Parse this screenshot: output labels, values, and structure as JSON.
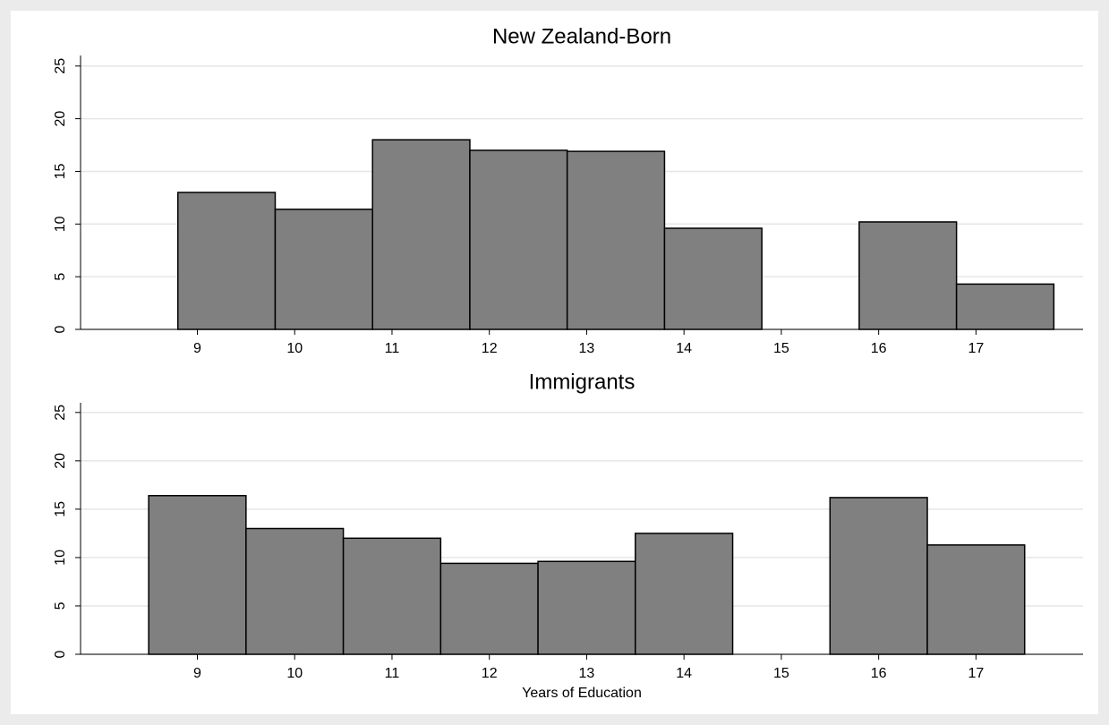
{
  "chart_data": [
    {
      "type": "histogram",
      "title": "New Zealand-Born",
      "bins": [
        8.8,
        9.8,
        10.8,
        11.8,
        12.8,
        13.8,
        14.8,
        15.8,
        16.8,
        17.8
      ],
      "values": [
        13,
        11.4,
        18,
        17,
        16.9,
        9.6,
        0,
        10.2,
        4.3
      ],
      "color": "#808080",
      "xlim": [
        7.8,
        18.1
      ],
      "xticks": [
        9,
        10,
        11,
        12,
        13,
        14,
        15,
        16,
        17
      ],
      "ylim": [
        0,
        26
      ],
      "yticks": [
        0,
        5,
        10,
        15,
        20,
        25
      ],
      "grid": true
    },
    {
      "type": "histogram",
      "title": "Immigrants",
      "xlabel": "Years of Education",
      "bins": [
        8.5,
        9.5,
        10.5,
        11.5,
        12.5,
        13.5,
        14.5,
        15.5,
        16.5,
        17.5
      ],
      "values": [
        16.4,
        13,
        12,
        9.4,
        9.6,
        12.5,
        0,
        16.2,
        11.3
      ],
      "color": "#808080",
      "xlim": [
        7.8,
        18.1
      ],
      "xticks": [
        9,
        10,
        11,
        12,
        13,
        14,
        15,
        16,
        17
      ],
      "ylim": [
        0,
        26
      ],
      "yticks": [
        0,
        5,
        10,
        15,
        20,
        25
      ],
      "grid": true
    }
  ]
}
